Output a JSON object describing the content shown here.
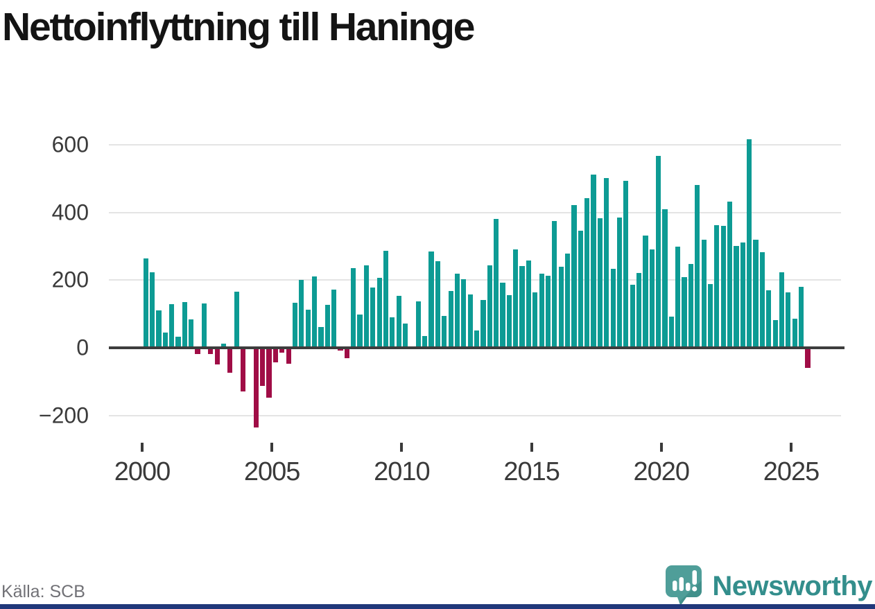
{
  "title": "Nettoinflyttning till Haninge",
  "source": {
    "label": "Källa: SCB"
  },
  "branding": {
    "name": "Newsworthy"
  },
  "chart_data": {
    "type": "bar",
    "title": "Nettoinflyttning till Haninge",
    "frequency": "quarterly",
    "x_start": "2000-Q1",
    "x_end": "2025-Q3",
    "x_tick_labels": [
      "2000",
      "2005",
      "2010",
      "2015",
      "2020",
      "2025"
    ],
    "y_ticks": [
      -200,
      0,
      200,
      400,
      600
    ],
    "ylim": [
      -260,
      660
    ],
    "grid": "horizontal",
    "legend": "none",
    "colors": {
      "positive": "#0d9b94",
      "negative": "#a00d46"
    },
    "series": [
      {
        "name": "Nettoinflyttning",
        "values": [
          265,
          224,
          110,
          45,
          130,
          33,
          135,
          84,
          -18,
          131,
          -18,
          -50,
          12,
          -73,
          165,
          -130,
          0,
          -236,
          -113,
          -147,
          -42,
          -14,
          -48,
          133,
          201,
          113,
          211,
          62,
          127,
          172,
          -8,
          -30,
          236,
          99,
          244,
          179,
          207,
          287,
          90,
          154,
          72,
          0,
          137,
          35,
          285,
          256,
          94,
          168,
          219,
          203,
          158,
          51,
          141,
          244,
          380,
          192,
          155,
          291,
          242,
          257,
          163,
          220,
          212,
          374,
          240,
          279,
          422,
          347,
          442,
          511,
          382,
          501,
          234,
          384,
          493,
          186,
          222,
          331,
          291,
          568,
          410,
          93,
          299,
          208,
          248,
          481,
          319,
          188,
          362,
          360,
          432,
          301,
          311,
          616,
          319,
          283,
          170,
          81,
          224,
          164,
          85,
          180,
          -59
        ]
      }
    ]
  }
}
